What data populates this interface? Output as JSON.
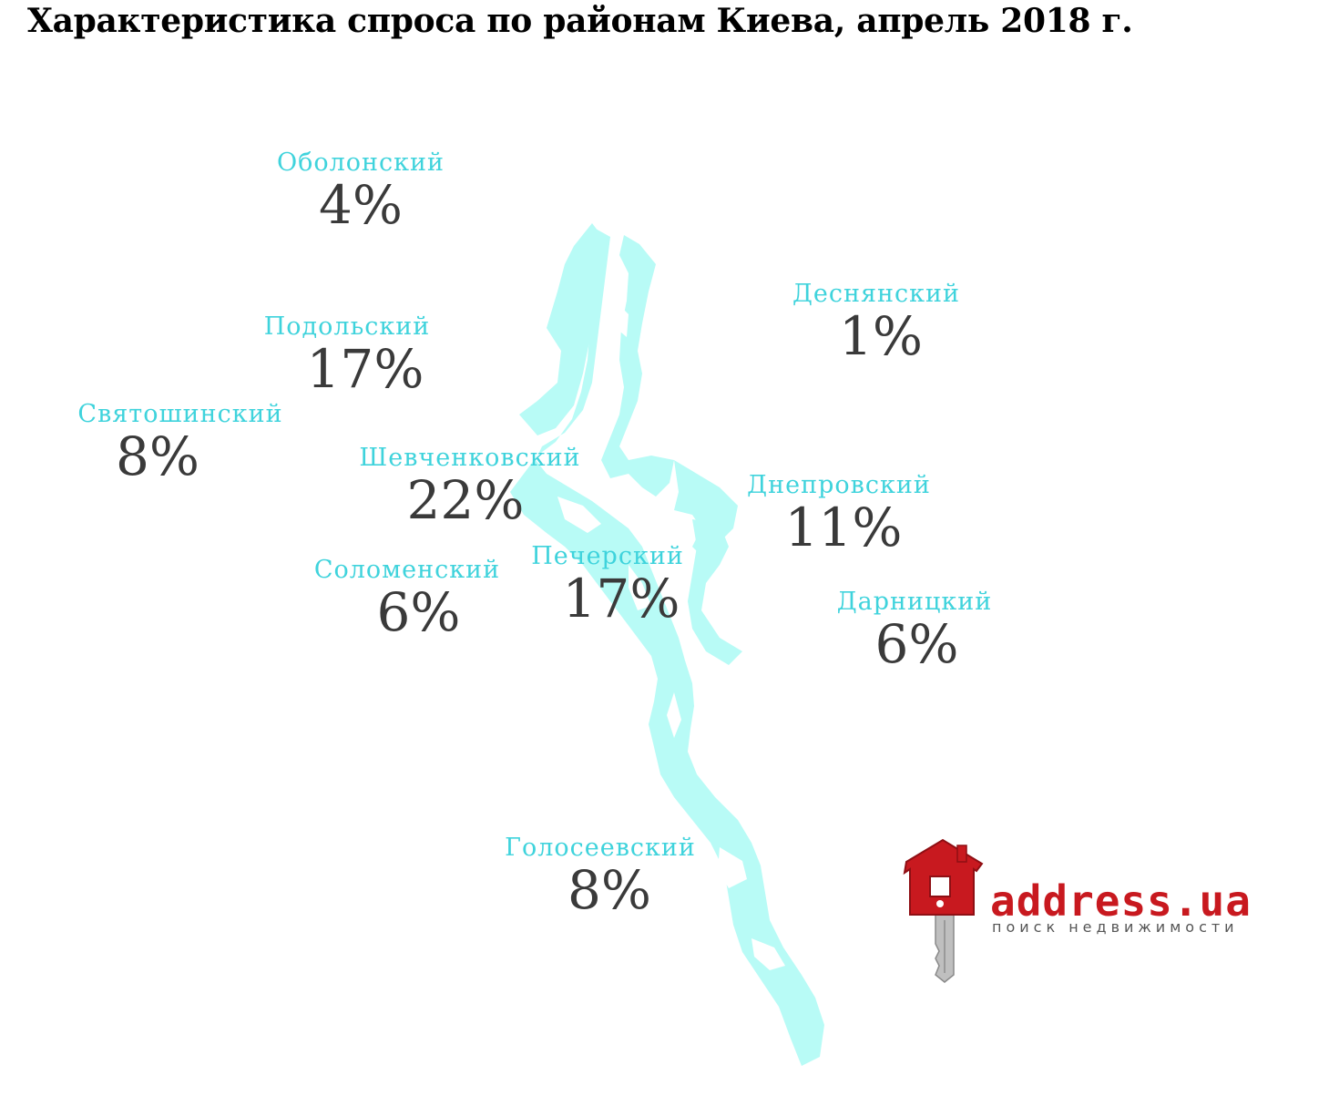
{
  "title": "Характеристика спроса по районам Киева, апрель 2018 г.",
  "colors": {
    "river": "#b8fbf6",
    "district_name": "#3fd3dc",
    "percent": "#3a3a3a",
    "brand_red": "#c8191f",
    "tagline": "#555555"
  },
  "districts": [
    {
      "name": "Оболонский",
      "value": "4%"
    },
    {
      "name": "Подольский",
      "value": "17%"
    },
    {
      "name": "Святошинский",
      "value": "8%"
    },
    {
      "name": "Шевченковский",
      "value": "22%"
    },
    {
      "name": "Соломенский",
      "value": "6%"
    },
    {
      "name": "Печерский",
      "value": "17%"
    },
    {
      "name": "Голосеевский",
      "value": "8%"
    },
    {
      "name": "Деснянский",
      "value": "1%"
    },
    {
      "name": "Днепровский",
      "value": "11%"
    },
    {
      "name": "Дарницкий",
      "value": "6%"
    }
  ],
  "logo": {
    "brand": "address.ua",
    "tagline": "поиск недвижимости",
    "icon": "house-key-icon"
  }
}
